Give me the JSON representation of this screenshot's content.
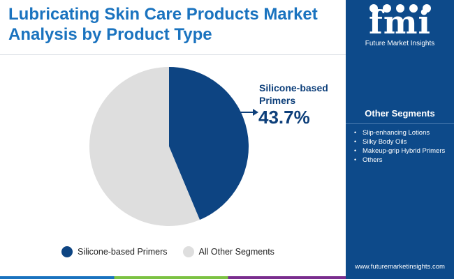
{
  "header": {
    "title_line1": "Lubricating Skin Care Products Market",
    "title_line2": "Analysis by Product Type"
  },
  "brand": {
    "logo_text": "fmi",
    "logo_subtext": "Future Market Insights",
    "website": "www.futuremarketinsights.com"
  },
  "sidebar": {
    "title": "Other Segments",
    "items": [
      "Slip-enhancing Lotions",
      "Silky Body Oils",
      "Makeup-grip Hybrid Primers",
      "Others"
    ]
  },
  "callout": {
    "label_line1": "Silicone-based",
    "label_line2": "Primers",
    "value": "43.7%"
  },
  "colors": {
    "primary_slice": "#0d4482",
    "other_slice": "#dedede",
    "title_blue": "#1a73bf",
    "sidebar_bg": "#0d4a8a"
  },
  "chart_data": {
    "type": "pie",
    "title": "Lubricating Skin Care Products Market Analysis by Product Type",
    "slices": [
      {
        "label": "Silicone-based Primers",
        "value": 43.7,
        "color": "#0d4482"
      },
      {
        "label": "All Other Segments",
        "value": 56.3,
        "color": "#dedede"
      }
    ],
    "legend": {
      "placement": "bottom",
      "entries": [
        "Silicone-based Primers",
        "All Other Segments"
      ]
    }
  }
}
